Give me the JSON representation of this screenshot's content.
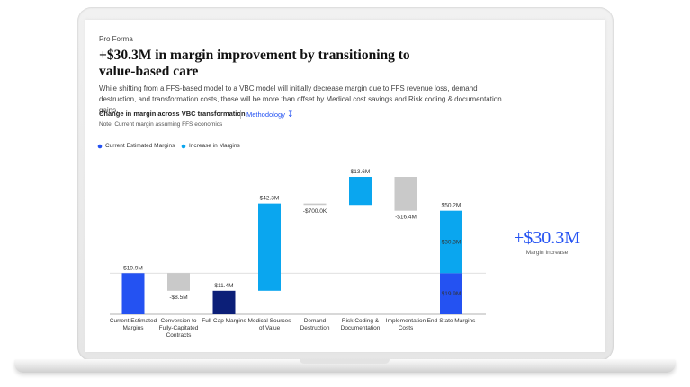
{
  "header": {
    "eyebrow": "Pro Forma",
    "title": "+$30.3M in margin improvement by transitioning to value-based care",
    "description": "While shifting from a FFS-based model to a VBC model will initially decrease margin due to FFS revenue loss, demand destruction, and transformation costs, those will be more than offset by Medical cost savings and Risk coding & documentation gains.",
    "subtitle": "Change in margin across VBC transformation",
    "link": "Methodology",
    "note": "Note: Current margin assuming FFS economics"
  },
  "callout": {
    "value": "+$30.3M",
    "label": "Margin Increase"
  },
  "chart_data": {
    "type": "waterfall",
    "categories": [
      "Current Estimated Margins",
      "Conversion to Fully-Capitated Contracts",
      "Full-Cap Margins",
      "Medical Sources of Value",
      "Demand Destruction",
      "Risk Coding & Documentation",
      "Implementation Costs",
      "End-State Margins"
    ],
    "values": [
      19.9,
      -8.5,
      11.4,
      42.3,
      -0.7,
      13.6,
      -16.4,
      50.2
    ],
    "value_labels": [
      "$19.9M",
      "-$8.5M",
      "$11.4M",
      "$42.3M",
      "-$700.0K",
      "$13.6M",
      "-$16.4M",
      "$50.2M"
    ],
    "measures": [
      "absolute",
      "relative",
      "absolute",
      "relative",
      "relative",
      "relative",
      "relative",
      "total"
    ],
    "series": [
      {
        "name": "Current Estimated Margins",
        "color": "#2452f2"
      },
      {
        "name": "Increase in Margins",
        "color": "#0aa6ef"
      }
    ],
    "negative_color": "#c9c9c9",
    "subtotal_color": "#0c1f78",
    "breakdown": {
      "values": [
        19.9,
        30.3
      ],
      "value_labels": [
        "$19.9M",
        "$30.3M"
      ]
    }
  }
}
